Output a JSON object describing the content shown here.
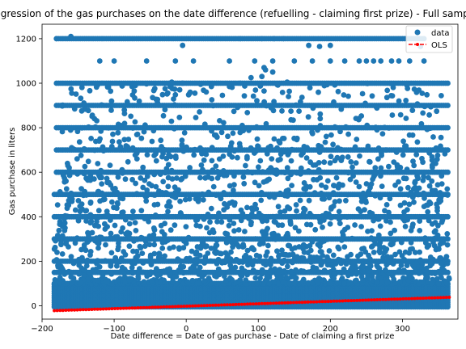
{
  "chart_data": {
    "type": "scatter",
    "title": "Regression of the gas purchases on the date difference (refuelling - claiming first prize) - Full sample",
    "xlabel": "Date difference = Date of gas purchase - Date of claiming a first prize",
    "ylabel": "Gas purchase in liters",
    "xlim": [
      -200,
      377
    ],
    "ylim": [
      -60,
      1265
    ],
    "xticks": [
      -200,
      -100,
      0,
      100,
      200,
      300
    ],
    "yticks": [
      0,
      200,
      400,
      600,
      800,
      1000,
      1200
    ],
    "x_range_of_data": [
      -183,
      365
    ],
    "grid": false,
    "legend_position": "upper-right",
    "series": [
      {
        "name": "data",
        "kind": "scatter",
        "color": "#1f77b4",
        "dense_band": {
          "y": [
            -5,
            100
          ]
        },
        "level_lines": [
          {
            "y": 1200,
            "x": [
              -180,
              330
            ]
          },
          {
            "y": 1000,
            "x": [
              -180,
              365
            ]
          },
          {
            "y": 900,
            "x": [
              -180,
              365
            ]
          },
          {
            "y": 800,
            "x": [
              -180,
              365
            ]
          },
          {
            "y": 700,
            "x": [
              -180,
              365
            ]
          },
          {
            "y": 600,
            "x": [
              -180,
              365
            ]
          },
          {
            "y": 500,
            "x": [
              -183,
              365
            ]
          },
          {
            "y": 400,
            "x": [
              -183,
              365
            ]
          },
          {
            "y": 300,
            "x": [
              -183,
              365
            ]
          },
          {
            "y": 200,
            "x": [
              -183,
              365
            ]
          },
          {
            "y": 150,
            "x": [
              -183,
              365
            ]
          },
          {
            "y": 100,
            "x": [
              -183,
              365
            ]
          }
        ],
        "outliers": [
          [
            -180,
            1200
          ],
          [
            -160,
            1210
          ],
          [
            75,
            1200
          ],
          [
            105,
            1200
          ],
          [
            122,
            1200
          ],
          [
            135,
            1200
          ],
          [
            -5,
            1170
          ],
          [
            170,
            1170
          ],
          [
            185,
            1165
          ],
          [
            200,
            1170
          ],
          [
            325,
            1165
          ],
          [
            -120,
            1100
          ],
          [
            -100,
            1100
          ],
          [
            -55,
            1100
          ],
          [
            -15,
            1100
          ],
          [
            10,
            1100
          ],
          [
            60,
            1100
          ],
          [
            95,
            1100
          ],
          [
            108,
            1070
          ],
          [
            120,
            1100
          ],
          [
            150,
            1100
          ],
          [
            175,
            1100
          ],
          [
            200,
            1100
          ],
          [
            220,
            1100
          ],
          [
            240,
            1100
          ],
          [
            250,
            1100
          ],
          [
            260,
            1100
          ],
          [
            270,
            1100
          ],
          [
            285,
            1100
          ],
          [
            295,
            1100
          ],
          [
            310,
            1100
          ],
          [
            330,
            1100
          ],
          [
            110,
            1060
          ],
          [
            120,
            1050
          ],
          [
            105,
            1030
          ],
          [
            90,
            1025
          ],
          [
            75,
            1000
          ],
          [
            60,
            985
          ],
          [
            108,
            965
          ],
          [
            140,
            1005
          ],
          [
            -20,
            1005
          ],
          [
            -5,
            1000
          ],
          [
            20,
            995
          ],
          [
            35,
            985
          ]
        ]
      },
      {
        "name": "OLS",
        "kind": "line",
        "color": "#ff0000",
        "style": "dashed-with-dots",
        "x": [
          -183,
          365
        ],
        "y": [
          -22,
          38
        ]
      }
    ]
  }
}
